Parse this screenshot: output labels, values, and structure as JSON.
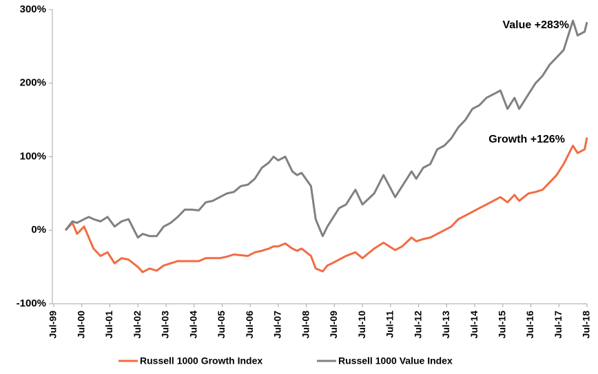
{
  "chart_data": {
    "type": "line",
    "x": [
      "Dec-99",
      "Mar-00",
      "May-00",
      "Aug-00",
      "Oct-00",
      "Dec-00",
      "Mar-01",
      "Jun-01",
      "Sep-01",
      "Dec-01",
      "Mar-02",
      "Jul-02",
      "Sep-02",
      "Dec-02",
      "Mar-03",
      "Jun-03",
      "Sep-03",
      "Dec-03",
      "Mar-04",
      "Jun-04",
      "Sep-04",
      "Dec-04",
      "Mar-05",
      "Jun-05",
      "Sep-05",
      "Dec-05",
      "Mar-06",
      "Jun-06",
      "Sep-06",
      "Dec-06",
      "Mar-07",
      "May-07",
      "Jul-07",
      "Oct-07",
      "Jan-08",
      "Mar-08",
      "May-08",
      "Sep-08",
      "Nov-08",
      "Feb-09",
      "Apr-09",
      "Jun-09",
      "Sep-09",
      "Dec-09",
      "Apr-10",
      "Jul-10",
      "Dec-10",
      "Apr-11",
      "Sep-11",
      "Dec-11",
      "Apr-12",
      "Jun-12",
      "Sep-12",
      "Dec-12",
      "Mar-13",
      "Jun-13",
      "Sep-13",
      "Dec-13",
      "Mar-14",
      "Jun-14",
      "Sep-14",
      "Dec-14",
      "Mar-15",
      "Jun-15",
      "Sep-15",
      "Dec-15",
      "Feb-16",
      "Jun-16",
      "Sep-16",
      "Dec-16",
      "Mar-17",
      "Jun-17",
      "Sep-17",
      "Jan-18",
      "Mar-18",
      "Jun-18",
      "Jul-18"
    ],
    "series": [
      {
        "name": "Russell 1000 Growth Index",
        "color": "#f26b43",
        "values": [
          0,
          10,
          -5,
          5,
          -10,
          -25,
          -35,
          -30,
          -45,
          -38,
          -40,
          -50,
          -57,
          -52,
          -55,
          -48,
          -45,
          -42,
          -42,
          -42,
          -42,
          -38,
          -38,
          -38,
          -36,
          -33,
          -34,
          -35,
          -30,
          -28,
          -25,
          -22,
          -22,
          -18,
          -25,
          -28,
          -25,
          -35,
          -52,
          -56,
          -48,
          -45,
          -40,
          -35,
          -30,
          -38,
          -25,
          -17,
          -27,
          -22,
          -10,
          -15,
          -12,
          -10,
          -5,
          0,
          5,
          15,
          20,
          25,
          30,
          35,
          40,
          45,
          38,
          48,
          40,
          50,
          52,
          55,
          65,
          75,
          90,
          115,
          105,
          110,
          126
        ]
      },
      {
        "name": "Russell 1000 Value Index",
        "color": "#808080",
        "values": [
          0,
          12,
          10,
          15,
          18,
          15,
          12,
          18,
          5,
          12,
          15,
          -10,
          -5,
          -8,
          -8,
          5,
          10,
          18,
          28,
          28,
          27,
          38,
          40,
          45,
          50,
          52,
          60,
          62,
          70,
          85,
          92,
          100,
          95,
          100,
          80,
          75,
          78,
          60,
          15,
          -8,
          5,
          15,
          30,
          35,
          55,
          35,
          50,
          75,
          45,
          60,
          80,
          70,
          85,
          90,
          110,
          115,
          125,
          140,
          150,
          165,
          170,
          180,
          185,
          190,
          165,
          180,
          165,
          185,
          200,
          210,
          225,
          235,
          245,
          285,
          265,
          270,
          283
        ]
      }
    ],
    "xlim": [
      "Jul-99",
      "Jul-18"
    ],
    "xticks": [
      "Jul-99",
      "Jul-00",
      "Jul-01",
      "Jul-02",
      "Jul-03",
      "Jul-04",
      "Jul-05",
      "Jul-06",
      "Jul-07",
      "Jul-08",
      "Jul-09",
      "Jul-10",
      "Jul-11",
      "Jul-12",
      "Jul-13",
      "Jul-14",
      "Jul-15",
      "Jul-16",
      "Jul-17",
      "Jul-18"
    ],
    "ylim": [
      -100,
      300
    ],
    "yticks": [
      {
        "value": -100,
        "label": "-100%"
      },
      {
        "value": 0,
        "label": "0%"
      },
      {
        "value": 100,
        "label": "100%"
      },
      {
        "value": 200,
        "label": "200%"
      },
      {
        "value": 300,
        "label": "300%"
      }
    ],
    "annotations": [
      {
        "text": "Value +283%"
      },
      {
        "text": "Growth +126%"
      }
    ],
    "legend": "bottom"
  }
}
